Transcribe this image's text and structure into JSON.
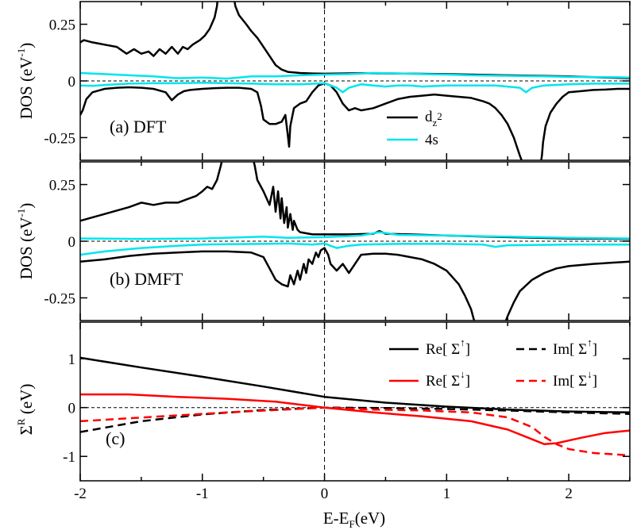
{
  "figure": {
    "xlabel_main": "E-E",
    "xlabel_sub": "F",
    "xlabel_unit": "(eV)"
  },
  "chart_data": [
    {
      "type": "line",
      "panel": "(a) DFT",
      "ylabel": {
        "main": "DOS (eV",
        "sup": "-1",
        "tail": ")"
      },
      "xlim": [
        -2,
        2.5
      ],
      "ylim": [
        -0.35,
        0.35
      ],
      "xticks": [
        -2,
        -1,
        0,
        1,
        2
      ],
      "yticks": [
        {
          "v": 0.25,
          "label": "0.25"
        },
        {
          "v": 0,
          "label": "0"
        },
        {
          "v": -0.25,
          "label": "-0.25"
        }
      ],
      "legend": [
        {
          "label_main": "d",
          "label_sub": "z",
          "label_subsup": "2",
          "color": "#000000",
          "dash": "solid"
        },
        {
          "label": "4s",
          "color": "#00e5ee",
          "dash": "solid"
        }
      ],
      "series": [
        {
          "name": "dz2 up",
          "color": "#000000",
          "x": [
            -2.0,
            -1.97,
            -1.9,
            -1.8,
            -1.7,
            -1.62,
            -1.56,
            -1.5,
            -1.44,
            -1.4,
            -1.35,
            -1.3,
            -1.25,
            -1.2,
            -1.16,
            -1.12,
            -1.08,
            -1.02,
            -0.98,
            -0.94,
            -0.9,
            -0.88,
            -0.87,
            -0.75,
            -0.73,
            -0.7,
            -0.67,
            -0.64,
            -0.6,
            -0.55,
            -0.5,
            -0.45,
            -0.4,
            -0.35,
            -0.3,
            -0.2,
            -0.1,
            0.0,
            0.3,
            0.6,
            1.0,
            1.5,
            2.0,
            2.5
          ],
          "y": [
            0.17,
            0.18,
            0.17,
            0.16,
            0.15,
            0.12,
            0.14,
            0.12,
            0.13,
            0.11,
            0.14,
            0.12,
            0.15,
            0.12,
            0.15,
            0.14,
            0.16,
            0.18,
            0.2,
            0.23,
            0.28,
            0.33,
            0.4,
            0.4,
            0.33,
            0.29,
            0.27,
            0.25,
            0.22,
            0.19,
            0.15,
            0.11,
            0.07,
            0.05,
            0.04,
            0.035,
            0.033,
            0.032,
            0.034,
            0.033,
            0.03,
            0.025,
            0.02,
            0.012
          ]
        },
        {
          "name": "dz2 down",
          "color": "#000000",
          "x": [
            -2.0,
            -1.98,
            -1.95,
            -1.9,
            -1.8,
            -1.7,
            -1.6,
            -1.5,
            -1.4,
            -1.3,
            -1.25,
            -1.2,
            -1.15,
            -1.1,
            -1.0,
            -0.9,
            -0.8,
            -0.7,
            -0.6,
            -0.55,
            -0.52,
            -0.5,
            -0.45,
            -0.4,
            -0.35,
            -0.32,
            -0.3,
            -0.29,
            -0.28,
            -0.25,
            -0.2,
            -0.15,
            -0.1,
            -0.05,
            0.0,
            0.05,
            0.1,
            0.15,
            0.2,
            0.25,
            0.3,
            0.4,
            0.5,
            0.6,
            0.7,
            0.8,
            0.9,
            1.0,
            1.1,
            1.2,
            1.3,
            1.35,
            1.4,
            1.45,
            1.5,
            1.55,
            1.6,
            1.65,
            1.7,
            1.76,
            1.78,
            1.79,
            1.81,
            1.85,
            1.9,
            1.95,
            2.0,
            2.1,
            2.2,
            2.3,
            2.4,
            2.5
          ],
          "y": [
            -0.15,
            -0.13,
            -0.08,
            -0.05,
            -0.035,
            -0.03,
            -0.028,
            -0.03,
            -0.035,
            -0.05,
            -0.085,
            -0.06,
            -0.045,
            -0.04,
            -0.035,
            -0.032,
            -0.03,
            -0.03,
            -0.035,
            -0.05,
            -0.11,
            -0.17,
            -0.19,
            -0.19,
            -0.18,
            -0.15,
            -0.24,
            -0.29,
            -0.2,
            -0.12,
            -0.1,
            -0.09,
            -0.05,
            -0.02,
            -0.01,
            -0.02,
            -0.05,
            -0.1,
            -0.13,
            -0.12,
            -0.13,
            -0.12,
            -0.1,
            -0.08,
            -0.07,
            -0.065,
            -0.06,
            -0.065,
            -0.07,
            -0.075,
            -0.09,
            -0.1,
            -0.12,
            -0.15,
            -0.19,
            -0.25,
            -0.33,
            -0.4,
            -0.4,
            -0.4,
            -0.33,
            -0.27,
            -0.2,
            -0.14,
            -0.1,
            -0.07,
            -0.05,
            -0.045,
            -0.04,
            -0.038,
            -0.035,
            -0.035
          ]
        },
        {
          "name": "4s up",
          "color": "#00e5ee",
          "x": [
            -2.0,
            -1.8,
            -1.6,
            -1.4,
            -1.2,
            -1.0,
            -0.8,
            -0.6,
            -0.4,
            -0.2,
            0.0,
            0.2,
            0.4,
            0.6,
            0.8,
            1.0,
            1.2,
            1.4,
            1.6,
            1.8,
            2.0,
            2.2,
            2.4,
            2.5
          ],
          "y": [
            0.035,
            0.03,
            0.025,
            0.02,
            0.012,
            0.015,
            0.01,
            0.02,
            0.02,
            0.025,
            0.028,
            0.03,
            0.035,
            0.033,
            0.03,
            0.028,
            0.025,
            0.023,
            0.022,
            0.02,
            0.018,
            0.017,
            0.016,
            0.015
          ]
        },
        {
          "name": "4s down",
          "color": "#00e5ee",
          "x": [
            -2.0,
            -1.9,
            -1.8,
            -1.6,
            -1.4,
            -1.2,
            -1.0,
            -0.8,
            -0.6,
            -0.4,
            -0.2,
            0.0,
            0.1,
            0.15,
            0.2,
            0.3,
            0.4,
            0.5,
            0.6,
            0.7,
            0.8,
            1.0,
            1.2,
            1.4,
            1.6,
            1.65,
            1.7,
            1.8,
            2.0,
            2.2,
            2.5
          ],
          "y": [
            -0.02,
            -0.022,
            -0.018,
            -0.012,
            -0.01,
            -0.01,
            -0.008,
            -0.01,
            -0.012,
            -0.015,
            -0.015,
            -0.01,
            -0.03,
            -0.05,
            -0.03,
            -0.015,
            -0.02,
            -0.025,
            -0.02,
            -0.02,
            -0.025,
            -0.02,
            -0.02,
            -0.02,
            -0.03,
            -0.05,
            -0.03,
            -0.02,
            -0.015,
            -0.012,
            -0.012
          ]
        }
      ]
    },
    {
      "type": "line",
      "panel": "(b) DMFT",
      "ylabel": {
        "main": "DOS (eV",
        "sup": "-1",
        "tail": ")"
      },
      "xlim": [
        -2,
        2.5
      ],
      "ylim": [
        -0.35,
        0.35
      ],
      "xticks": [
        -2,
        -1,
        0,
        1,
        2
      ],
      "yticks": [
        {
          "v": 0.25,
          "label": "0.25"
        },
        {
          "v": 0,
          "label": "0"
        },
        {
          "v": -0.25,
          "label": "-0.25"
        }
      ],
      "series": [
        {
          "name": "dz2 up",
          "color": "#000000",
          "x": [
            -2.0,
            -1.8,
            -1.6,
            -1.5,
            -1.4,
            -1.3,
            -1.2,
            -1.1,
            -1.05,
            -1.0,
            -0.96,
            -0.92,
            -0.88,
            -0.85,
            -0.82,
            -0.6,
            -0.57,
            -0.55,
            -0.5,
            -0.45,
            -0.42,
            -0.4,
            -0.38,
            -0.36,
            -0.35,
            -0.33,
            -0.31,
            -0.3,
            -0.28,
            -0.26,
            -0.25,
            -0.22,
            -0.2,
            -0.15,
            -0.1,
            0.0,
            0.2,
            0.4,
            0.45,
            0.5,
            0.7,
            1.0,
            1.5,
            2.0,
            2.5
          ],
          "y": [
            0.09,
            0.12,
            0.15,
            0.17,
            0.16,
            0.17,
            0.17,
            0.19,
            0.2,
            0.22,
            0.24,
            0.23,
            0.27,
            0.33,
            0.4,
            0.4,
            0.33,
            0.27,
            0.22,
            0.16,
            0.24,
            0.13,
            0.22,
            0.1,
            0.19,
            0.08,
            0.15,
            0.06,
            0.12,
            0.05,
            0.09,
            0.05,
            0.04,
            0.035,
            0.03,
            0.03,
            0.03,
            0.033,
            0.045,
            0.033,
            0.03,
            0.025,
            0.018,
            0.012,
            0.01
          ]
        },
        {
          "name": "dz2 down",
          "color": "#000000",
          "x": [
            -2.0,
            -1.8,
            -1.6,
            -1.4,
            -1.2,
            -1.0,
            -0.8,
            -0.6,
            -0.5,
            -0.45,
            -0.4,
            -0.35,
            -0.3,
            -0.28,
            -0.25,
            -0.22,
            -0.2,
            -0.17,
            -0.15,
            -0.13,
            -0.1,
            -0.07,
            -0.05,
            -0.03,
            0.0,
            0.03,
            0.05,
            0.1,
            0.15,
            0.2,
            0.25,
            0.3,
            0.4,
            0.5,
            0.6,
            0.7,
            0.8,
            0.9,
            1.0,
            1.05,
            1.1,
            1.15,
            1.2,
            1.25,
            1.3,
            1.45,
            1.5,
            1.55,
            1.6,
            1.7,
            1.8,
            1.9,
            2.0,
            2.2,
            2.5
          ],
          "y": [
            -0.09,
            -0.08,
            -0.065,
            -0.055,
            -0.05,
            -0.045,
            -0.045,
            -0.05,
            -0.07,
            -0.12,
            -0.17,
            -0.19,
            -0.2,
            -0.15,
            -0.19,
            -0.13,
            -0.17,
            -0.1,
            -0.14,
            -0.08,
            -0.1,
            -0.05,
            -0.07,
            -0.04,
            -0.03,
            -0.06,
            -0.1,
            -0.13,
            -0.1,
            -0.14,
            -0.1,
            -0.06,
            -0.055,
            -0.055,
            -0.06,
            -0.07,
            -0.08,
            -0.1,
            -0.13,
            -0.16,
            -0.19,
            -0.24,
            -0.3,
            -0.4,
            -0.4,
            -0.4,
            -0.33,
            -0.27,
            -0.22,
            -0.17,
            -0.14,
            -0.12,
            -0.11,
            -0.1,
            -0.09
          ]
        },
        {
          "name": "4s up",
          "color": "#00e5ee",
          "x": [
            -2.0,
            -1.5,
            -1.0,
            -0.5,
            -0.3,
            0.0,
            0.3,
            0.45,
            0.6,
            1.0,
            1.5,
            2.0,
            2.5
          ],
          "y": [
            0.012,
            0.01,
            0.012,
            0.02,
            0.015,
            0.018,
            0.025,
            0.04,
            0.028,
            0.025,
            0.02,
            0.015,
            0.012
          ]
        },
        {
          "name": "4s down",
          "color": "#00e5ee",
          "x": [
            -2.0,
            -1.8,
            -1.5,
            -1.2,
            -1.0,
            -0.8,
            -0.5,
            -0.3,
            -0.1,
            0.0,
            0.1,
            0.2,
            0.3,
            0.6,
            1.0,
            1.3,
            1.4,
            1.5,
            2.0,
            2.5
          ],
          "y": [
            -0.06,
            -0.045,
            -0.03,
            -0.02,
            -0.015,
            -0.013,
            -0.012,
            -0.01,
            -0.015,
            -0.01,
            -0.03,
            -0.02,
            -0.015,
            -0.012,
            -0.012,
            -0.015,
            -0.025,
            -0.018,
            -0.015,
            -0.015
          ]
        }
      ]
    },
    {
      "type": "line",
      "panel": "(c)",
      "ylabel": {
        "main": "Σ",
        "sup": "R",
        "tail": " (eV)"
      },
      "xlim": [
        -2,
        2.5
      ],
      "ylim": [
        -1.5,
        1.75
      ],
      "xticks": [
        -2,
        -1,
        0,
        1,
        2
      ],
      "xticklabels": [
        "-2",
        "-1",
        "0",
        "1",
        "2"
      ],
      "yticks": [
        {
          "v": 1,
          "label": "1"
        },
        {
          "v": 0,
          "label": "0"
        },
        {
          "v": -1,
          "label": "-1"
        }
      ],
      "legend": [
        {
          "prefix": "Re[ Σ",
          "arrow": "↑",
          "suffix": "]",
          "color": "#000000",
          "dash": "solid"
        },
        {
          "prefix": "Im[ Σ",
          "arrow": "↑",
          "suffix": "]",
          "color": "#000000",
          "dash": "dashed"
        },
        {
          "prefix": "Re[ Σ",
          "arrow": "↓",
          "suffix": "]",
          "color": "#ff0000",
          "dash": "solid"
        },
        {
          "prefix": "Im[ Σ",
          "arrow": "↓",
          "suffix": "]",
          "color": "#ff0000",
          "dash": "dashed"
        }
      ],
      "series": [
        {
          "name": "Re Σ up",
          "color": "#000000",
          "dash": "solid",
          "x": [
            -2.0,
            -1.5,
            -1.0,
            -0.5,
            0.0,
            0.5,
            1.0,
            1.5,
            2.0,
            2.5
          ],
          "y": [
            1.02,
            0.82,
            0.63,
            0.43,
            0.22,
            0.1,
            0.02,
            -0.04,
            -0.08,
            -0.1
          ]
        },
        {
          "name": "Im Σ up",
          "color": "#000000",
          "dash": "dashed",
          "x": [
            -2.0,
            -1.5,
            -1.0,
            -0.5,
            0.0,
            0.5,
            1.0,
            1.5,
            2.0,
            2.5
          ],
          "y": [
            -0.5,
            -0.28,
            -0.14,
            -0.05,
            0.0,
            -0.01,
            -0.03,
            -0.06,
            -0.1,
            -0.13
          ]
        },
        {
          "name": "Re Σ down",
          "color": "#ff0000",
          "dash": "solid",
          "x": [
            -2.0,
            -1.6,
            -1.2,
            -0.8,
            -0.4,
            0.0,
            0.4,
            0.8,
            1.2,
            1.5,
            1.7,
            1.8,
            1.9,
            2.1,
            2.3,
            2.5
          ],
          "y": [
            0.27,
            0.27,
            0.22,
            0.18,
            0.12,
            0.0,
            -0.1,
            -0.18,
            -0.28,
            -0.45,
            -0.65,
            -0.75,
            -0.73,
            -0.62,
            -0.52,
            -0.47
          ]
        },
        {
          "name": "Im Σ down",
          "color": "#ff0000",
          "dash": "dashed",
          "x": [
            -2.0,
            -1.6,
            -1.2,
            -0.8,
            -0.4,
            0.0,
            0.4,
            0.8,
            1.2,
            1.5,
            1.7,
            1.8,
            1.9,
            2.0,
            2.2,
            2.5
          ],
          "y": [
            -0.28,
            -0.22,
            -0.16,
            -0.1,
            -0.05,
            0.0,
            -0.04,
            -0.06,
            -0.1,
            -0.2,
            -0.4,
            -0.6,
            -0.75,
            -0.85,
            -0.93,
            -0.98
          ]
        }
      ]
    }
  ]
}
